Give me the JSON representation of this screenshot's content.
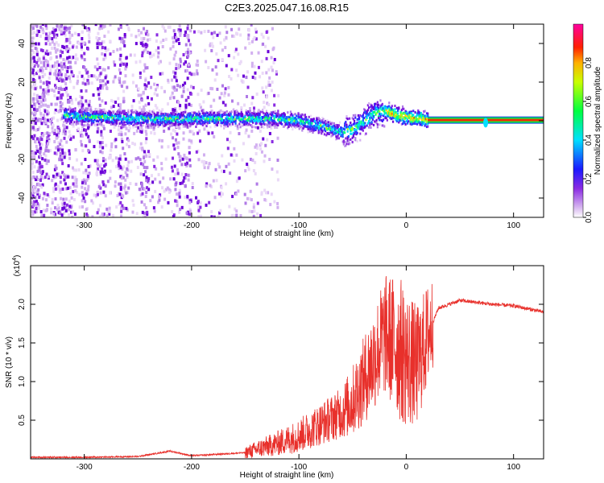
{
  "title": "C2E3.2025.047.16.08.R15",
  "chart_data": [
    {
      "type": "heatmap",
      "xlabel": "Height of straight line (km)",
      "ylabel": "Frequency (Hz)",
      "xlim": [
        -350,
        128
      ],
      "ylim": [
        -50,
        50
      ],
      "xticks": [
        -300,
        -200,
        -100,
        0,
        100
      ],
      "yticks": [
        -40,
        -20,
        0,
        20,
        40
      ],
      "colorbar": {
        "label": "Normalized spectral amplitude",
        "range": [
          0.0,
          1.0
        ],
        "ticks": [
          "0.0",
          "0.2",
          "0.4",
          "0.6",
          "0.8"
        ]
      },
      "ridge_center_hz": {
        "x": [
          -350,
          -320,
          -300,
          -250,
          -200,
          -150,
          -120,
          -100,
          -80,
          -60,
          -50,
          -40,
          -30,
          -20,
          -10,
          0,
          10,
          20,
          60,
          75,
          128
        ],
        "y": [
          2,
          3,
          2,
          1,
          1,
          1,
          1,
          0,
          -3,
          -6,
          -4,
          0,
          4,
          5,
          3,
          2,
          1,
          0.5,
          0.5,
          -1,
          0.5
        ]
      },
      "grid": false
    },
    {
      "type": "line",
      "xlabel": "Height of straight line (km)",
      "ylabel": "SNR (10 * v/v)",
      "y_multiplier": "(x10^4)",
      "xlim": [
        -350,
        128
      ],
      "ylim": [
        0,
        2.5
      ],
      "xticks": [
        -300,
        -200,
        -100,
        0,
        100
      ],
      "yticks": [
        "0.5",
        "1.0",
        "1.5",
        "2.0"
      ],
      "color": "#e8302b",
      "series": [
        {
          "x": [
            -350,
            -300,
            -250,
            -220,
            -200,
            -150,
            -120,
            -100,
            -80,
            -60,
            -50,
            -40,
            -30,
            -20,
            -10,
            0,
            10,
            20,
            30,
            50,
            80,
            100,
            128
          ],
          "y": [
            0.02,
            0.02,
            0.03,
            0.1,
            0.04,
            0.08,
            0.2,
            0.3,
            0.45,
            0.6,
            0.75,
            1.0,
            1.3,
            1.6,
            1.5,
            1.3,
            1.2,
            1.6,
            1.95,
            2.05,
            2.0,
            1.98,
            1.9
          ]
        }
      ],
      "grid": false
    }
  ]
}
